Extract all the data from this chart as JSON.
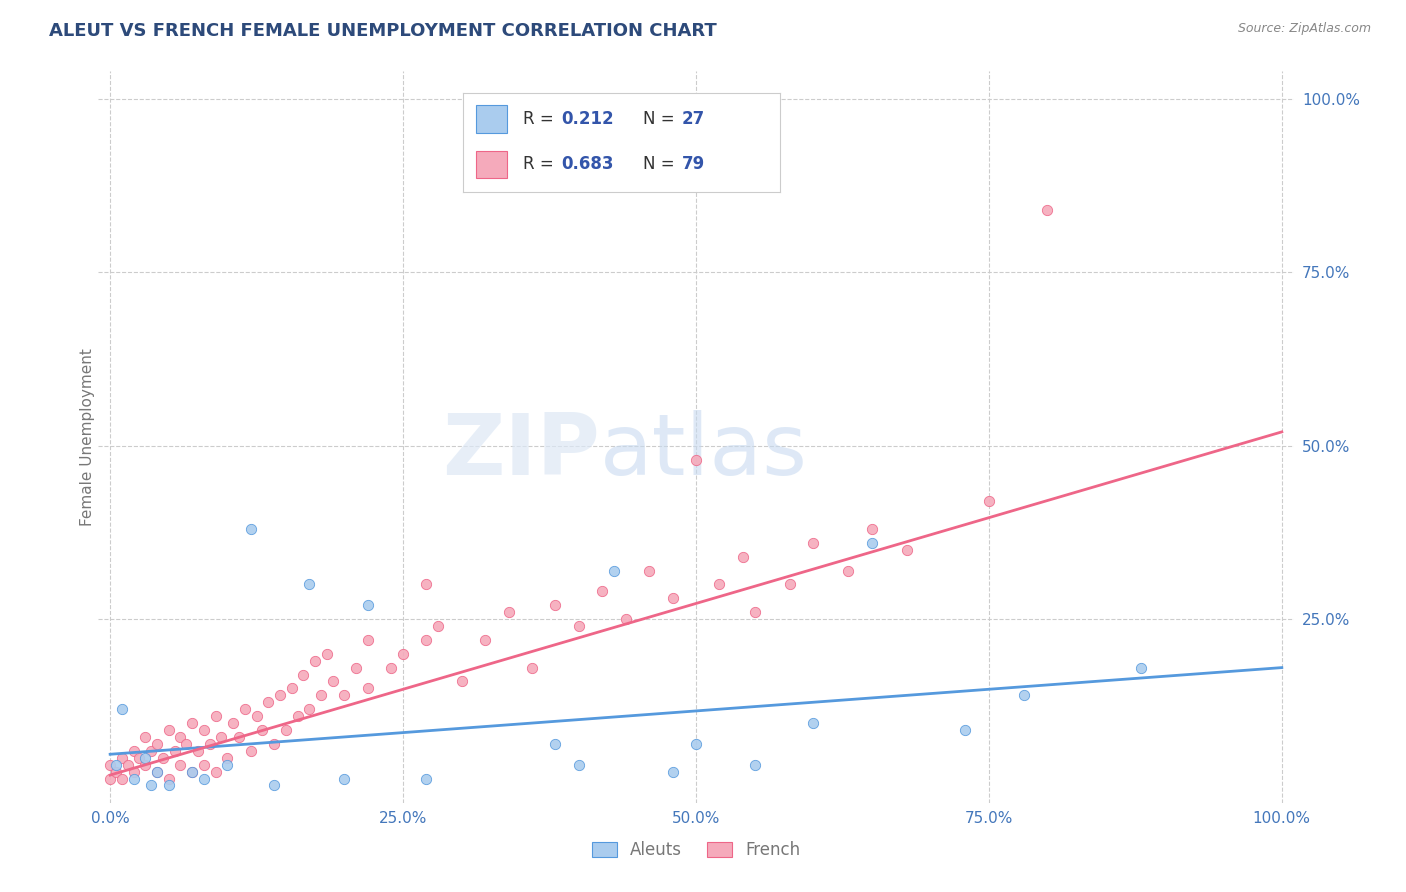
{
  "title": "ALEUT VS FRENCH FEMALE UNEMPLOYMENT CORRELATION CHART",
  "source": "Source: ZipAtlas.com",
  "ylabel": "Female Unemployment",
  "title_color": "#2d4a7a",
  "axis_label_color": "#777777",
  "background_color": "#ffffff",
  "grid_color": "#cccccc",
  "r_aleut": 0.212,
  "n_aleut": 27,
  "r_french": 0.683,
  "n_french": 79,
  "aleut_color": "#aaccee",
  "french_color": "#f5aabb",
  "aleut_line_color": "#5599dd",
  "french_line_color": "#ee6688",
  "legend_label_color": "#3355aa",
  "tick_color": "#4477bb",
  "aleut_scatter_x": [
    0.005,
    0.01,
    0.02,
    0.03,
    0.035,
    0.04,
    0.05,
    0.07,
    0.08,
    0.1,
    0.12,
    0.14,
    0.17,
    0.2,
    0.22,
    0.27,
    0.38,
    0.4,
    0.43,
    0.48,
    0.5,
    0.55,
    0.6,
    0.65,
    0.73,
    0.78,
    0.88
  ],
  "aleut_scatter_y": [
    0.04,
    0.12,
    0.02,
    0.05,
    0.01,
    0.03,
    0.01,
    0.03,
    0.02,
    0.04,
    0.38,
    0.01,
    0.3,
    0.02,
    0.27,
    0.02,
    0.07,
    0.04,
    0.32,
    0.03,
    0.07,
    0.04,
    0.1,
    0.36,
    0.09,
    0.14,
    0.18
  ],
  "french_scatter_x": [
    0.0,
    0.0,
    0.005,
    0.01,
    0.01,
    0.015,
    0.02,
    0.02,
    0.025,
    0.03,
    0.03,
    0.035,
    0.04,
    0.04,
    0.045,
    0.05,
    0.05,
    0.055,
    0.06,
    0.06,
    0.065,
    0.07,
    0.07,
    0.075,
    0.08,
    0.08,
    0.085,
    0.09,
    0.09,
    0.095,
    0.1,
    0.105,
    0.11,
    0.115,
    0.12,
    0.125,
    0.13,
    0.135,
    0.14,
    0.145,
    0.15,
    0.155,
    0.16,
    0.165,
    0.17,
    0.175,
    0.18,
    0.185,
    0.19,
    0.2,
    0.21,
    0.22,
    0.22,
    0.24,
    0.25,
    0.27,
    0.27,
    0.28,
    0.3,
    0.32,
    0.34,
    0.36,
    0.38,
    0.4,
    0.42,
    0.44,
    0.46,
    0.48,
    0.5,
    0.52,
    0.54,
    0.55,
    0.58,
    0.6,
    0.63,
    0.65,
    0.68,
    0.75,
    0.8
  ],
  "french_scatter_y": [
    0.02,
    0.04,
    0.03,
    0.02,
    0.05,
    0.04,
    0.03,
    0.06,
    0.05,
    0.04,
    0.08,
    0.06,
    0.03,
    0.07,
    0.05,
    0.02,
    0.09,
    0.06,
    0.04,
    0.08,
    0.07,
    0.03,
    0.1,
    0.06,
    0.04,
    0.09,
    0.07,
    0.03,
    0.11,
    0.08,
    0.05,
    0.1,
    0.08,
    0.12,
    0.06,
    0.11,
    0.09,
    0.13,
    0.07,
    0.14,
    0.09,
    0.15,
    0.11,
    0.17,
    0.12,
    0.19,
    0.14,
    0.2,
    0.16,
    0.14,
    0.18,
    0.15,
    0.22,
    0.18,
    0.2,
    0.22,
    0.3,
    0.24,
    0.16,
    0.22,
    0.26,
    0.18,
    0.27,
    0.24,
    0.29,
    0.25,
    0.32,
    0.28,
    0.48,
    0.3,
    0.34,
    0.26,
    0.3,
    0.36,
    0.32,
    0.38,
    0.35,
    0.42,
    0.84
  ],
  "aleut_trend_x": [
    0.0,
    1.0
  ],
  "aleut_trend_y": [
    0.055,
    0.18
  ],
  "french_trend_x": [
    0.0,
    1.0
  ],
  "french_trend_y": [
    0.025,
    0.52
  ],
  "xlim": [
    -0.01,
    1.01
  ],
  "ylim": [
    -0.015,
    1.04
  ],
  "xtick_vals": [
    0.0,
    0.25,
    0.5,
    0.75,
    1.0
  ],
  "ytick_vals": [
    0.25,
    0.5,
    0.75,
    1.0
  ],
  "xtick_labels": [
    "0.0%",
    "25.0%",
    "50.0%",
    "75.0%",
    "100.0%"
  ],
  "ytick_labels": [
    "25.0%",
    "50.0%",
    "75.0%",
    "100.0%"
  ],
  "legend_labels": [
    "Aleuts",
    "French"
  ]
}
